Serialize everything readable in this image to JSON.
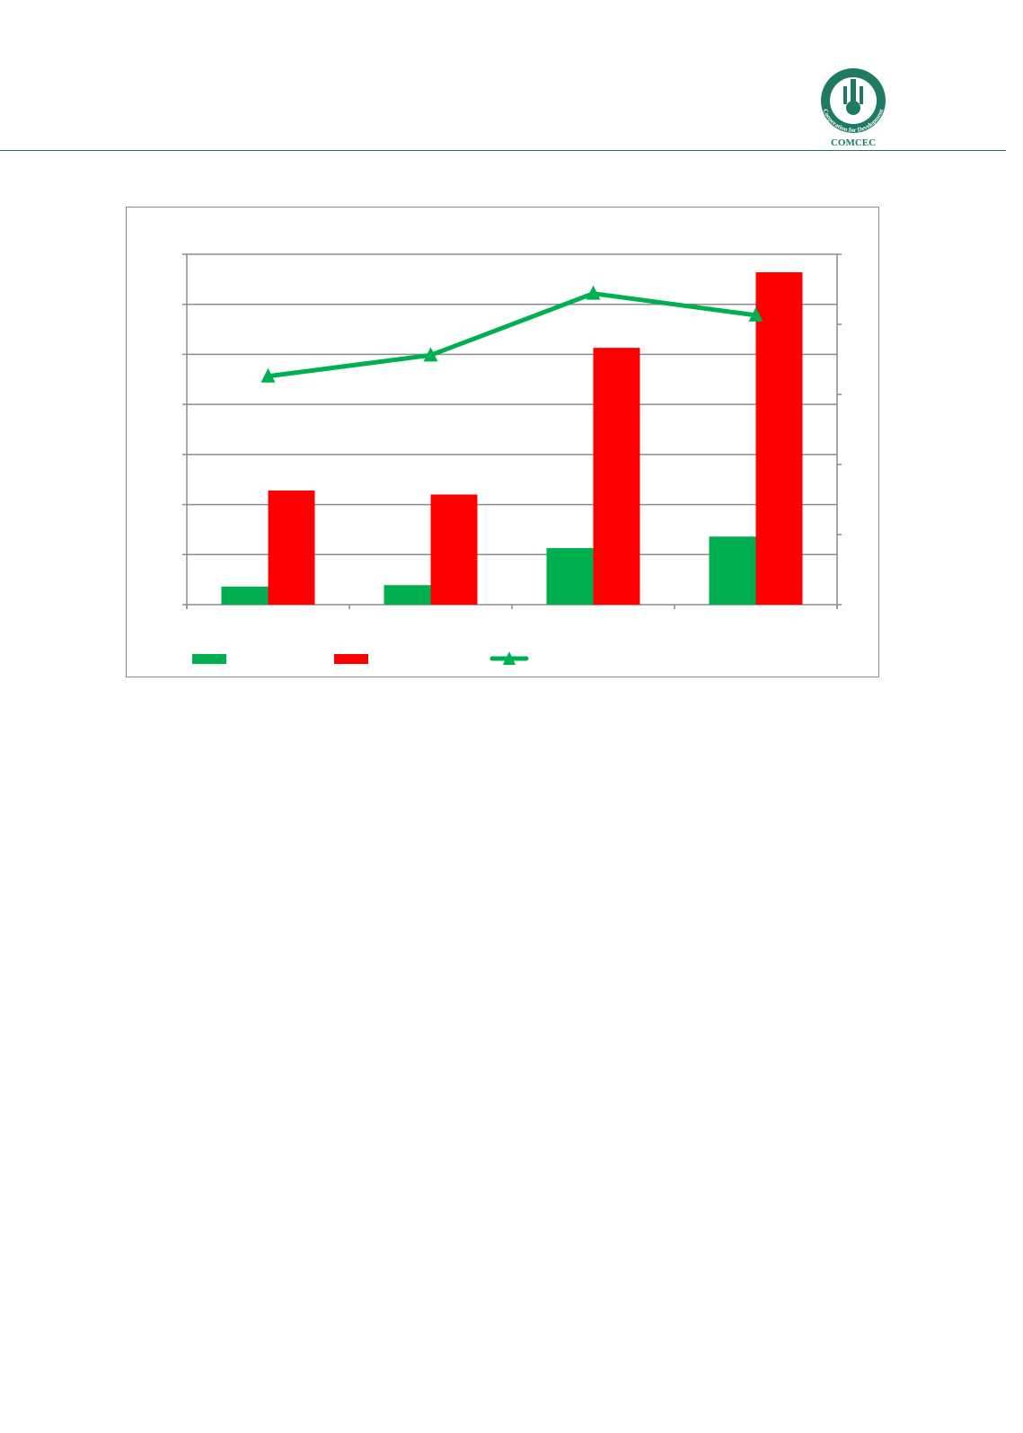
{
  "header": {
    "logo_text": "COMCEC",
    "logo_motto": "Cooperation for Development"
  },
  "colors": {
    "series1": "#00b050",
    "series2": "#ff0000",
    "line": "#00b050",
    "rule": "#1f7a4d"
  },
  "chart_data": {
    "type": "bar+line",
    "title": "",
    "categories": [
      "",
      "",
      "",
      ""
    ],
    "ylim": [
      0,
      7
    ],
    "y2lim": [
      0,
      5
    ],
    "grid": true,
    "legend": "bottom",
    "series": [
      {
        "type": "bar",
        "axis": "left",
        "color": "#00b050",
        "values": [
          0.36,
          0.39,
          1.13,
          1.36
        ]
      },
      {
        "type": "bar",
        "axis": "left",
        "color": "#ff0000",
        "values": [
          2.28,
          2.2,
          5.13,
          6.64
        ]
      },
      {
        "type": "line",
        "axis": "right",
        "marker": "triangle",
        "color": "#00b050",
        "values": [
          3.26,
          3.56,
          4.44,
          4.13
        ]
      }
    ]
  }
}
